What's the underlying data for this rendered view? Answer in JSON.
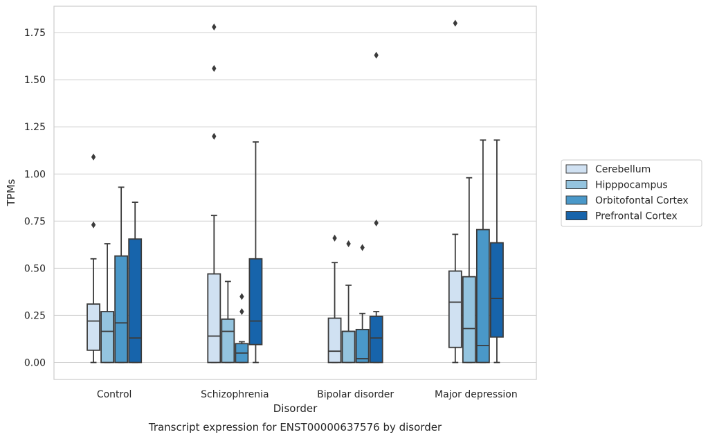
{
  "caption": "Transcript expression for ENST00000637576 by disorder",
  "chart_data": {
    "type": "box",
    "title": "",
    "xlabel": "Disorder",
    "ylabel": "TPMs",
    "ylim": [
      -0.09,
      1.89
    ],
    "yticks": [
      "0.00",
      "0.25",
      "0.50",
      "0.75",
      "1.00",
      "1.25",
      "1.50",
      "1.75"
    ],
    "grid": "horizontal",
    "legend_position": "right",
    "categories": [
      "Control",
      "Schizophrenia",
      "Bipolar disorder",
      "Major depression"
    ],
    "series": [
      {
        "name": "Cerebellum",
        "color": "#d0e1f2",
        "boxes": [
          {
            "q1": 0.065,
            "median": 0.22,
            "q3": 0.31,
            "whisker_low": 0.0,
            "whisker_high": 0.55,
            "outliers": [
              0.73,
              1.09
            ]
          },
          {
            "q1": 0.0,
            "median": 0.14,
            "q3": 0.47,
            "whisker_low": 0.0,
            "whisker_high": 0.78,
            "outliers": [
              1.2,
              1.56,
              1.78
            ]
          },
          {
            "q1": 0.0,
            "median": 0.06,
            "q3": 0.235,
            "whisker_low": 0.0,
            "whisker_high": 0.53,
            "outliers": [
              0.66
            ]
          },
          {
            "q1": 0.08,
            "median": 0.32,
            "q3": 0.485,
            "whisker_low": 0.0,
            "whisker_high": 0.68,
            "outliers": [
              1.8
            ]
          }
        ]
      },
      {
        "name": "Hipppocampus",
        "color": "#94c4df",
        "boxes": [
          {
            "q1": 0.0,
            "median": 0.165,
            "q3": 0.27,
            "whisker_low": 0.0,
            "whisker_high": 0.63,
            "outliers": []
          },
          {
            "q1": 0.0,
            "median": 0.165,
            "q3": 0.23,
            "whisker_low": 0.0,
            "whisker_high": 0.43,
            "outliers": []
          },
          {
            "q1": 0.0,
            "median": 0.165,
            "q3": 0.165,
            "whisker_low": 0.0,
            "whisker_high": 0.41,
            "outliers": [
              0.63
            ]
          },
          {
            "q1": 0.0,
            "median": 0.18,
            "q3": 0.455,
            "whisker_low": 0.0,
            "whisker_high": 0.98,
            "outliers": []
          }
        ]
      },
      {
        "name": "Orbitofontal Cortex",
        "color": "#4a98c9",
        "boxes": [
          {
            "q1": 0.0,
            "median": 0.21,
            "q3": 0.565,
            "whisker_low": 0.0,
            "whisker_high": 0.93,
            "outliers": []
          },
          {
            "q1": 0.0,
            "median": 0.05,
            "q3": 0.1,
            "whisker_low": 0.0,
            "whisker_high": 0.11,
            "outliers": [
              0.27,
              0.35
            ]
          },
          {
            "q1": 0.0,
            "median": 0.02,
            "q3": 0.175,
            "whisker_low": 0.0,
            "whisker_high": 0.26,
            "outliers": [
              0.61
            ]
          },
          {
            "q1": 0.0,
            "median": 0.09,
            "q3": 0.705,
            "whisker_low": 0.0,
            "whisker_high": 1.18,
            "outliers": []
          }
        ]
      },
      {
        "name": "Prefrontal Cortex",
        "color": "#1764ab",
        "boxes": [
          {
            "q1": 0.0,
            "median": 0.13,
            "q3": 0.655,
            "whisker_low": 0.0,
            "whisker_high": 0.85,
            "outliers": []
          },
          {
            "q1": 0.095,
            "median": 0.22,
            "q3": 0.55,
            "whisker_low": 0.0,
            "whisker_high": 1.17,
            "outliers": []
          },
          {
            "q1": 0.0,
            "median": 0.13,
            "q3": 0.245,
            "whisker_low": 0.0,
            "whisker_high": 0.27,
            "outliers": [
              0.74,
              1.63
            ]
          },
          {
            "q1": 0.135,
            "median": 0.34,
            "q3": 0.635,
            "whisker_low": 0.0,
            "whisker_high": 1.18,
            "outliers": []
          }
        ]
      }
    ]
  }
}
